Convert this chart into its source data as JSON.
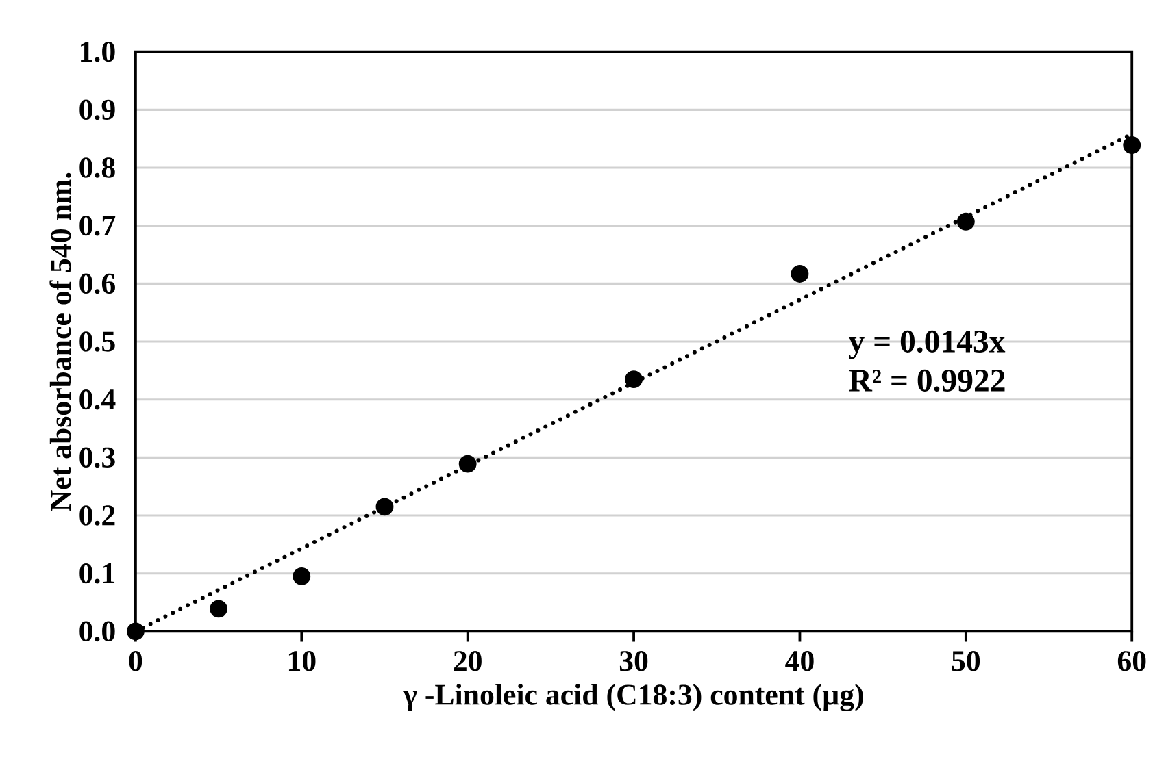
{
  "chart_data": {
    "type": "scatter",
    "xlabel": "γ -Linoleic acid (C18:3) content (µg)",
    "ylabel": "Net absorbance of 540 nm.",
    "xlim": [
      0,
      60
    ],
    "xticks": [
      0,
      10,
      20,
      30,
      40,
      50,
      60
    ],
    "ylim": [
      0,
      1
    ],
    "yticks": [
      {
        "value": 0,
        "label": "0.0"
      },
      {
        "value": 0.1,
        "label": "0.1"
      },
      {
        "value": 0.2,
        "label": "0.2"
      },
      {
        "value": 0.3,
        "label": "0.3"
      },
      {
        "value": 0.4,
        "label": "0.4"
      },
      {
        "value": 0.5,
        "label": "0.5"
      },
      {
        "value": 0.6,
        "label": "0.6"
      },
      {
        "value": 0.7,
        "label": "0.7"
      },
      {
        "value": 0.8,
        "label": "0.8"
      },
      {
        "value": 0.9,
        "label": "0.9"
      },
      {
        "value": 1,
        "label": "1.0"
      }
    ],
    "grid": "y",
    "series": [
      {
        "color": "#000000",
        "marker": "circle",
        "x": [
          0,
          5,
          10,
          15,
          20,
          30,
          40,
          50,
          60
        ],
        "values": [
          0,
          0.039,
          0.095,
          0.215,
          0.289,
          0.435,
          0.617,
          0.707,
          0.839
        ]
      },
      {
        "type": "line",
        "color": "#000000",
        "marker": "none",
        "line_style": "dotted",
        "x": [
          0,
          60
        ],
        "values": [
          0,
          0.858
        ]
      }
    ],
    "annotations": [
      "y = 0.0143x",
      "R² = 0.9922"
    ]
  }
}
